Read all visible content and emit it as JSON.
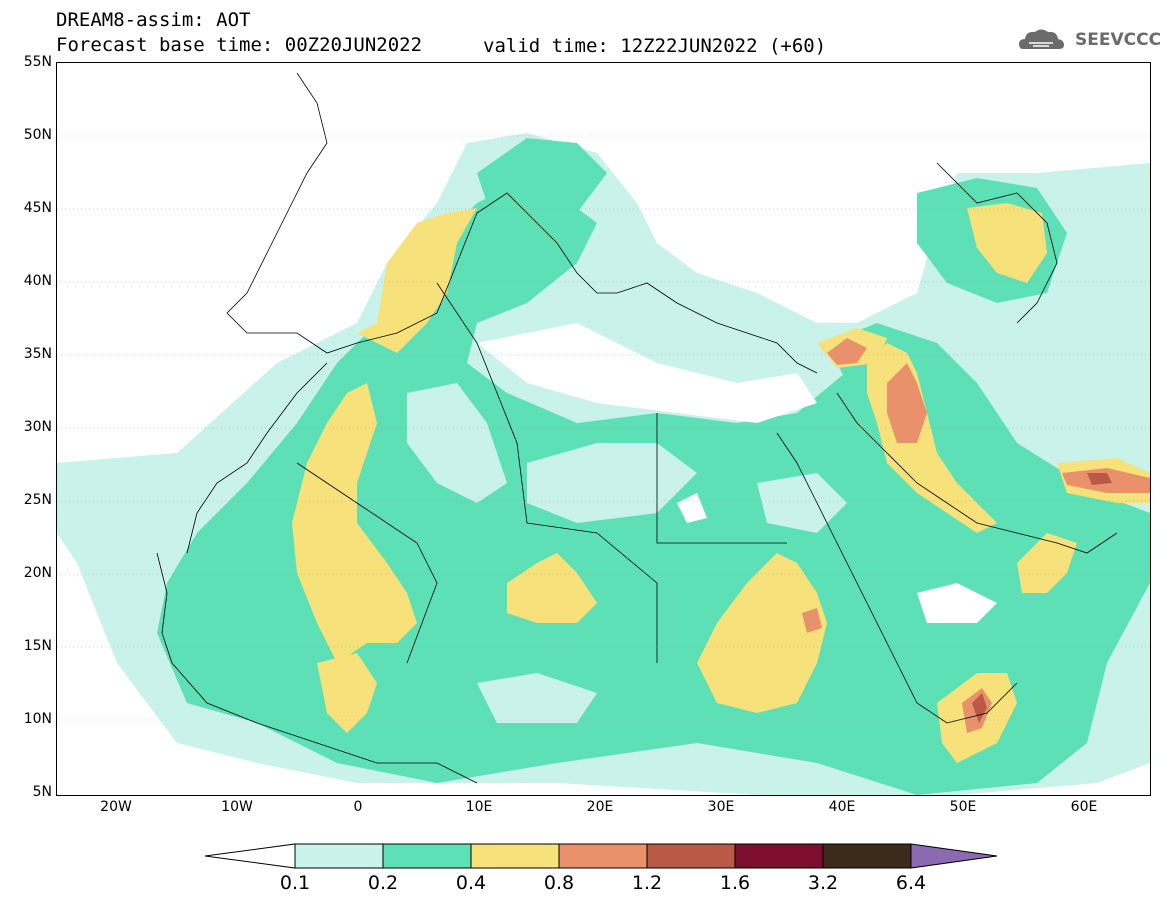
{
  "header": {
    "title": "DREAM8-assim: AOT",
    "base_time": "Forecast base time: 00Z20JUN2022",
    "valid_time": "valid time: 12Z22JUN2022 (+60)"
  },
  "logo": {
    "text": "SEEVCCC",
    "icon": "cloud-icon"
  },
  "axes": {
    "y_labels": [
      "55N",
      "50N",
      "45N",
      "40N",
      "35N",
      "30N",
      "25N",
      "20N",
      "15N",
      "10N",
      "5N"
    ],
    "x_labels": [
      "20W",
      "10W",
      "0",
      "10E",
      "20E",
      "30E",
      "40E",
      "50E",
      "60E"
    ]
  },
  "colorbar": {
    "labels": [
      "0.1",
      "0.2",
      "0.4",
      "0.8",
      "1.2",
      "1.6",
      "3.2",
      "6.4"
    ],
    "colors": [
      "#ffffff",
      "#c8f2ea",
      "#5ee0b6",
      "#f7e17a",
      "#e8916a",
      "#b85a45",
      "#7d0f2e",
      "#3c2a1a",
      "#8b6ab2"
    ]
  },
  "map": {
    "variable": "Aerosol Optical Thickness",
    "extent_lon": [
      -25,
      65
    ],
    "extent_lat": [
      5,
      55
    ]
  }
}
